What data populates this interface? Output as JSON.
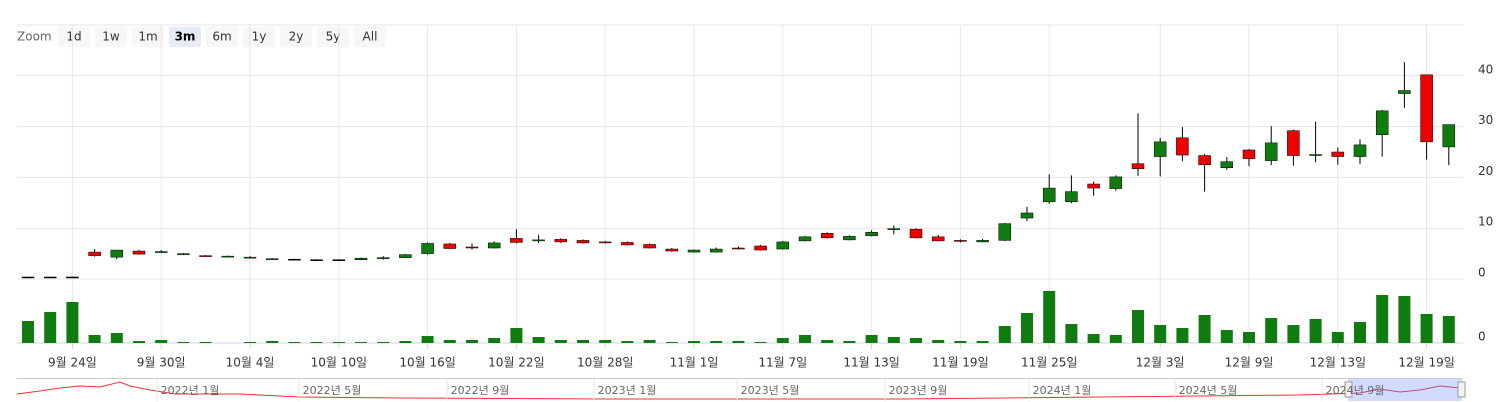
{
  "zoom": {
    "label": "Zoom",
    "buttons": [
      "1d",
      "1w",
      "1m",
      "3m",
      "6m",
      "1y",
      "2y",
      "5y",
      "All"
    ],
    "selected": 3
  },
  "chart_data": [
    {
      "type": "candlestick",
      "categories": [
        null,
        null,
        "9월 24일",
        null,
        null,
        null,
        "9월 30일",
        null,
        null,
        null,
        "10월 4일",
        null,
        null,
        null,
        "10월 10일",
        null,
        null,
        null,
        "10월 16일",
        null,
        null,
        null,
        "10월 22일",
        null,
        null,
        null,
        "10월 28일",
        null,
        null,
        null,
        "11월 1일",
        null,
        null,
        null,
        "11월 7일",
        null,
        null,
        null,
        "11월 13일",
        null,
        null,
        null,
        "11월 19일",
        null,
        null,
        null,
        "11월 25일",
        null,
        null,
        null,
        null,
        "12월 3일",
        null,
        null,
        null,
        "12월 9일",
        null,
        null,
        null,
        "12월 13일",
        null,
        null,
        null,
        "12월 19일",
        null
      ],
      "open": [
        0.4,
        0.4,
        0.4,
        5.3,
        4.3,
        5.5,
        5.3,
        4.8,
        4.6,
        4.4,
        4.3,
        3.9,
        3.9,
        3.8,
        3.8,
        3.8,
        4.0,
        4.2,
        5.0,
        6.9,
        6.3,
        6.1,
        8.0,
        7.6,
        7.8,
        7.6,
        7.3,
        7.2,
        6.8,
        5.9,
        5.3,
        5.3,
        6.1,
        6.5,
        5.9,
        7.5,
        9.0,
        7.7,
        8.5,
        9.8,
        9.8,
        8.3,
        7.6,
        7.3,
        7.6,
        12.0,
        15.2,
        15.2,
        18.7,
        17.8,
        22.7,
        24.1,
        27.8,
        24.3,
        21.9,
        25.4,
        23.3,
        29.2,
        24.4,
        25.0,
        24.1,
        28.4,
        36.5,
        40.2,
        26.0
      ],
      "high": [
        0.4,
        0.4,
        0.4,
        5.9,
        5.7,
        5.7,
        5.7,
        5.1,
        4.7,
        4.6,
        4.5,
        4.1,
        4.0,
        3.9,
        3.9,
        4.2,
        4.5,
        4.9,
        7.2,
        7.1,
        7.0,
        7.4,
        9.8,
        8.7,
        8.0,
        7.8,
        7.5,
        7.4,
        7.0,
        6.1,
        5.8,
        6.2,
        6.4,
        6.7,
        7.5,
        8.5,
        9.2,
        8.6,
        9.6,
        10.5,
        10.0,
        8.7,
        7.8,
        7.9,
        11.0,
        14.2,
        20.6,
        20.4,
        19.2,
        20.4,
        32.6,
        27.8,
        29.9,
        24.6,
        24.0,
        25.6,
        30.1,
        29.4,
        31.0,
        25.9,
        27.5,
        33.3,
        42.7,
        40.2,
        30.4
      ],
      "low": [
        0.4,
        0.4,
        0.4,
        4.4,
        3.9,
        4.8,
        5.2,
        4.7,
        4.4,
        4.3,
        4.0,
        3.8,
        3.8,
        3.7,
        3.7,
        3.7,
        3.8,
        4.1,
        4.8,
        5.9,
        5.8,
        6.0,
        7.0,
        7.1,
        7.1,
        7.0,
        7.0,
        6.6,
        6.0,
        5.4,
        5.2,
        5.2,
        5.8,
        5.6,
        5.8,
        7.4,
        8.0,
        7.6,
        8.4,
        8.8,
        8.0,
        7.4,
        7.2,
        7.2,
        7.5,
        11.4,
        14.8,
        14.9,
        16.4,
        17.4,
        20.3,
        20.2,
        23.2,
        17.2,
        21.5,
        22.2,
        22.4,
        22.3,
        23.0,
        22.5,
        22.6,
        24.1,
        33.7,
        23.5,
        22.4
      ],
      "close": [
        0.4,
        0.4,
        0.4,
        4.6,
        5.7,
        4.9,
        5.4,
        5.0,
        4.5,
        4.5,
        4.2,
        4.0,
        3.9,
        3.8,
        3.8,
        4.1,
        4.2,
        4.8,
        7.0,
        6.0,
        6.2,
        7.1,
        7.2,
        7.7,
        7.3,
        7.1,
        7.2,
        6.7,
        6.1,
        5.5,
        5.7,
        5.9,
        6.0,
        5.7,
        7.3,
        8.3,
        8.1,
        8.4,
        9.2,
        9.9,
        8.1,
        7.5,
        7.5,
        7.6,
        10.9,
        13.0,
        17.9,
        17.2,
        17.9,
        20.1,
        21.7,
        27.0,
        24.4,
        22.5,
        23.1,
        23.7,
        26.8,
        24.3,
        24.5,
        24.1,
        26.4,
        33.1,
        37.1,
        27.0,
        30.4
      ],
      "up_color": "#107c10",
      "down_color": "#ee0000",
      "ylim": [
        0,
        50
      ],
      "yticks": [
        0,
        10,
        20,
        30,
        40
      ],
      "grid": true
    },
    {
      "type": "bar",
      "values": [
        22,
        31,
        41,
        8,
        10,
        2,
        3,
        1,
        1,
        0,
        1,
        2,
        1,
        1,
        1,
        1,
        1,
        2,
        7,
        3,
        3,
        5,
        15,
        6,
        3,
        3,
        3,
        2,
        3,
        1,
        2,
        2,
        2,
        1,
        5,
        8,
        3,
        2,
        8,
        6,
        5,
        3,
        2,
        2,
        17,
        30,
        52,
        19,
        9,
        8,
        33,
        18,
        15,
        28,
        13,
        11,
        25,
        18,
        24,
        11,
        21,
        48,
        47,
        29,
        27
      ],
      "color": "#107c10",
      "ylim": [
        0,
        63
      ],
      "yticks": [
        0
      ]
    }
  ],
  "navigator": {
    "labels": [
      "2022년 1월",
      "2022년 5월",
      "2022년 9월",
      "2023년 1월",
      "2023년 5월",
      "2023년 9월",
      "2024년 1월",
      "2024년 5월",
      "2024년 9월"
    ]
  }
}
